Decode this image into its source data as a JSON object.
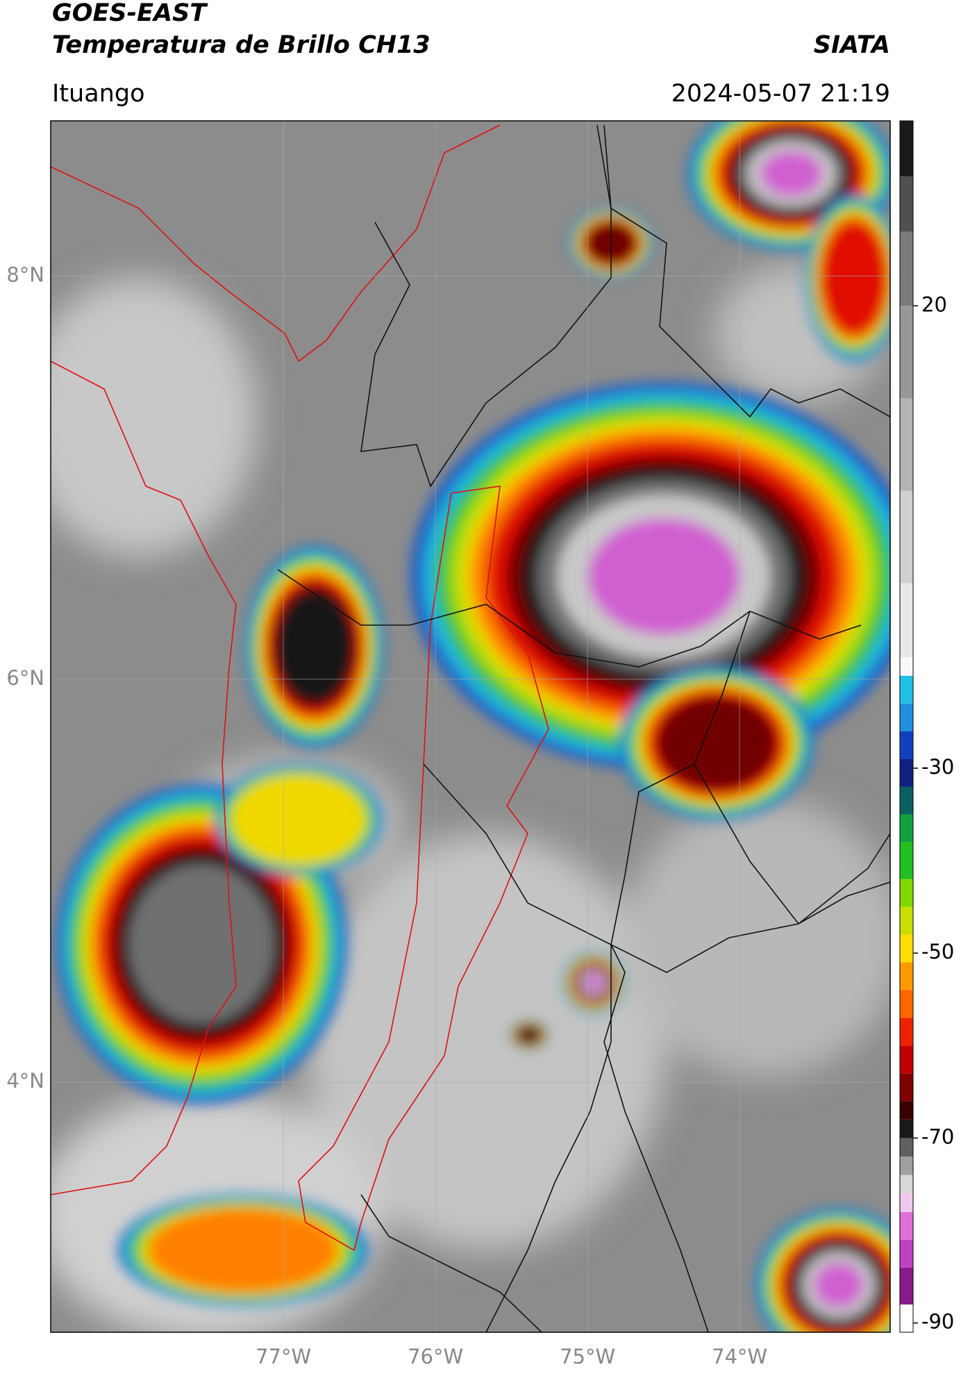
{
  "header": {
    "title": "GOES-EAST",
    "subtitle": "Temperatura de Brillo CH13",
    "agency": "SIATA",
    "location": "Ituango",
    "datetime": "2024-05-07 21:19"
  },
  "map": {
    "lonlim": [
      -78.53,
      -73.01
    ],
    "latlim": [
      2.76,
      8.77
    ],
    "lonticks": [
      {
        "value": -77,
        "label": "77°W"
      },
      {
        "value": -76,
        "label": "76°W"
      },
      {
        "value": -75,
        "label": "75°W"
      },
      {
        "value": -74,
        "label": "74°W"
      }
    ],
    "latticks": [
      {
        "value": 8,
        "label": "8°N"
      },
      {
        "value": 6,
        "label": "6°N"
      },
      {
        "value": 4,
        "label": "4°N"
      }
    ],
    "grid": true
  },
  "colorbar": {
    "lim": [
      -91,
      40
    ],
    "ticks": [
      20,
      -30,
      -50,
      -70,
      -90
    ],
    "levels": [
      -91,
      -88,
      -84,
      -81,
      -78,
      -76,
      -74,
      -72,
      -70,
      -68,
      -66,
      -63,
      -60,
      -57,
      -54,
      -51,
      -48,
      -45,
      -42,
      -38,
      -35,
      -32,
      -29,
      -26,
      -23,
      -20,
      -18,
      -10,
      0,
      10,
      20,
      28,
      34,
      40
    ],
    "colors": [
      "#ffffff",
      "#8a1a8a",
      "#c040c0",
      "#e070d8",
      "#f0c8ee",
      "#d8d8d8",
      "#a0a0a0",
      "#606060",
      "#1a1a1a",
      "#3a0000",
      "#800000",
      "#c00000",
      "#ee2200",
      "#ff6600",
      "#ff9900",
      "#ffdd00",
      "#c8e000",
      "#80d800",
      "#20c020",
      "#10a040",
      "#0a6060",
      "#102080",
      "#1040c0",
      "#2090e0",
      "#20c0e8",
      "#f8f8f8",
      "#e8e8e8",
      "#d0d0d0",
      "#b4b4b4",
      "#989898",
      "#7a7a7a",
      "#505050",
      "#1a1a1a"
    ]
  }
}
